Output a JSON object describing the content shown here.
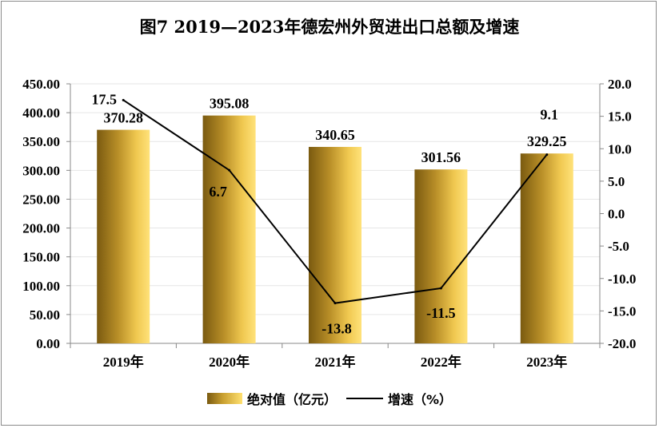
{
  "chart_data": {
    "type": "bar+line",
    "title": "图7  2019—2023年德宏州外贸进出口总额及增速",
    "categories": [
      "2019年",
      "2020年",
      "2021年",
      "2022年",
      "2023年"
    ],
    "series": [
      {
        "name": "绝对值（亿元）",
        "kind": "bar",
        "axis": "left",
        "values": [
          370.28,
          395.08,
          340.65,
          301.56,
          329.25
        ],
        "labels": [
          "370.28",
          "395.08",
          "340.65",
          "301.56",
          "329.25"
        ]
      },
      {
        "name": "增速（%）",
        "kind": "line",
        "axis": "right",
        "values": [
          17.5,
          6.7,
          -13.8,
          -11.5,
          9.1
        ],
        "labels": [
          "17.5",
          "6.7",
          "-13.8",
          "-11.5",
          "9.1"
        ]
      }
    ],
    "y_left": {
      "min": 0,
      "max": 450,
      "step": 50,
      "ticks": [
        "0.00",
        "50.00",
        "100.00",
        "150.00",
        "200.00",
        "250.00",
        "300.00",
        "350.00",
        "400.00",
        "450.00"
      ]
    },
    "y_right": {
      "min": -20,
      "max": 20,
      "step": 5,
      "ticks": [
        "-20.0",
        "-15.0",
        "-10.0",
        "-5.0",
        "0.0",
        "5.0",
        "10.0",
        "15.0",
        "20.0"
      ]
    },
    "legend": {
      "position": "bottom",
      "bar_label": "绝对值（亿元）",
      "line_label": "增速（%）"
    },
    "colors": {
      "bar_dark": "#7a5a10",
      "bar_mid": "#c9a030",
      "bar_light": "#ffe070",
      "line": "#000000"
    }
  }
}
